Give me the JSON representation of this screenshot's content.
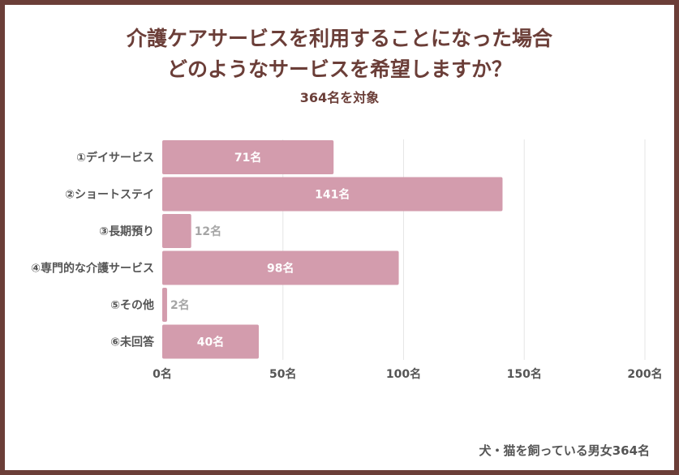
{
  "title_line1": "介護ケアサービスを利用することになった場合",
  "title_line2": "どのようなサービスを希望しますか？",
  "subtitle": "364名を対象",
  "footer": "犬・猫を飼っている男女364名",
  "colors": {
    "bar": "#d39cad",
    "frame": "#6b3e38",
    "grid": "#e6e6e6"
  },
  "chart_data": {
    "type": "bar",
    "orientation": "horizontal",
    "title": "介護ケアサービスを利用することになった場合 どのようなサービスを希望しますか？",
    "categories": [
      "①デイサービス",
      "②ショートステイ",
      "③長期預り",
      "④専門的な介護サービス",
      "⑤その他",
      "⑥未回答"
    ],
    "values": [
      71,
      141,
      12,
      98,
      2,
      40
    ],
    "value_labels": [
      "71名",
      "141名",
      "12名",
      "98名",
      "2名",
      "40名"
    ],
    "xticks": [
      0,
      50,
      100,
      150,
      200
    ],
    "xtick_labels": [
      "0名",
      "50名",
      "100名",
      "150名",
      "200名"
    ],
    "xlim": [
      0,
      200
    ],
    "grid": true,
    "xlabel": "",
    "ylabel": ""
  }
}
